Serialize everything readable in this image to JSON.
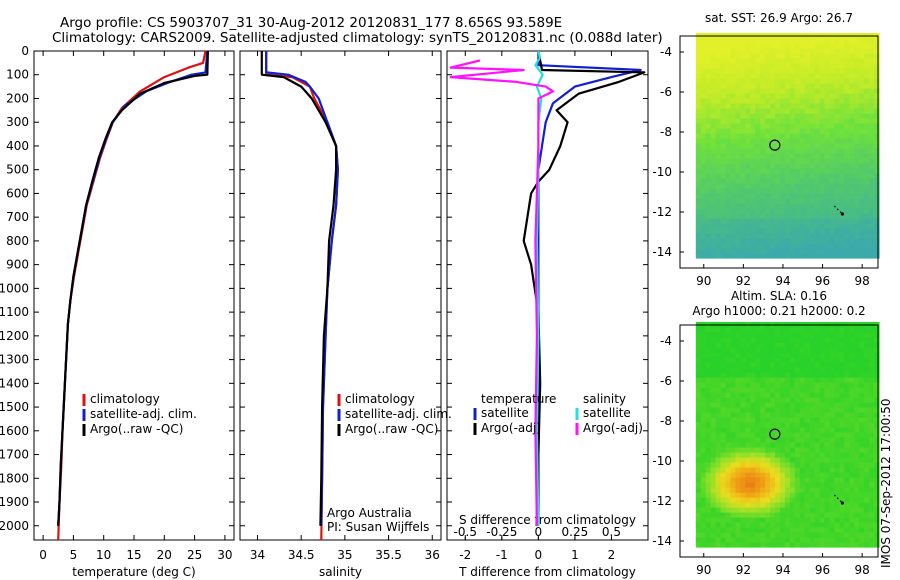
{
  "titles": {
    "line1": "Argo profile: CS 5903707_31 30-Aug-2012 20120831_177 8.656S 93.589E",
    "line2": "Climatology: CARS2009. Satellite-adjusted climatology: synTS_20120831.nc (0.088d later)"
  },
  "side_stamp": "IMOS 07-Sep-2012 17:00:50",
  "colors": {
    "climatology": "#e01010",
    "satellite": "#1020d0",
    "argo": "#000000",
    "satellite_salinity": "#20e0e0",
    "argo_salinity": "#ff10ff"
  },
  "chart_data": [
    {
      "type": "line",
      "panel": "temperature",
      "xlabel": "temperature (deg C)",
      "ylabel": "",
      "xlim": [
        -1.5,
        31.5
      ],
      "ylim": [
        2060,
        0
      ],
      "xticks": [
        0,
        5,
        10,
        15,
        20,
        25,
        30
      ],
      "yticks": [
        0,
        100,
        200,
        300,
        400,
        500,
        600,
        700,
        800,
        900,
        1000,
        1100,
        1200,
        1300,
        1400,
        1500,
        1600,
        1700,
        1800,
        1900,
        2000
      ],
      "legend": {
        "placement": "lower-center",
        "entries": [
          "climatology",
          "satellite-adj. clim.",
          "Argo(..raw -QC)"
        ]
      },
      "series": [
        {
          "name": "climatology",
          "color_key": "climatology",
          "points": [
            [
              26.8,
              0
            ],
            [
              26.4,
              50
            ],
            [
              24,
              70
            ],
            [
              20,
              110
            ],
            [
              16,
              170
            ],
            [
              13,
              240
            ],
            [
              11.5,
              300
            ],
            [
              10.5,
              370
            ],
            [
              9.4,
              450
            ],
            [
              8.3,
              550
            ],
            [
              7.2,
              650
            ],
            [
              6.5,
              750
            ],
            [
              5.8,
              850
            ],
            [
              5.1,
              950
            ],
            [
              4.5,
              1050
            ],
            [
              4.1,
              1150
            ],
            [
              3.8,
              1300
            ],
            [
              3.5,
              1450
            ],
            [
              3.2,
              1600
            ],
            [
              3,
              1750
            ],
            [
              2.7,
              1900
            ],
            [
              2.5,
              2060
            ]
          ]
        },
        {
          "name": "satellite-adj. clim.",
          "color_key": "satellite",
          "points": [
            [
              27.1,
              0
            ],
            [
              26.8,
              90
            ],
            [
              24.5,
              100
            ],
            [
              21,
              130
            ],
            [
              17,
              170
            ],
            [
              13.5,
              230
            ],
            [
              11.5,
              300
            ],
            [
              10.4,
              370
            ],
            [
              9.3,
              450
            ],
            [
              8.2,
              550
            ],
            [
              7.1,
              650
            ],
            [
              6.4,
              750
            ],
            [
              5.7,
              850
            ],
            [
              5,
              950
            ],
            [
              4.5,
              1050
            ],
            [
              4.1,
              1150
            ],
            [
              3.8,
              1300
            ],
            [
              3.5,
              1450
            ],
            [
              3.2,
              1600
            ],
            [
              2.9,
              1750
            ],
            [
              2.7,
              1900
            ],
            [
              2.5,
              2000
            ]
          ]
        },
        {
          "name": "Argo(..raw -QC)",
          "color_key": "argo",
          "points": [
            [
              27.2,
              0
            ],
            [
              27.1,
              100
            ],
            [
              25,
              105
            ],
            [
              20,
              135
            ],
            [
              16,
              180
            ],
            [
              13,
              250
            ],
            [
              11.4,
              300
            ],
            [
              10.3,
              370
            ],
            [
              9.2,
              450
            ],
            [
              8.1,
              550
            ],
            [
              7.1,
              650
            ],
            [
              6.4,
              750
            ],
            [
              5.7,
              850
            ],
            [
              5,
              950
            ],
            [
              4.5,
              1050
            ],
            [
              4.1,
              1150
            ],
            [
              3.8,
              1300
            ],
            [
              3.5,
              1450
            ],
            [
              3.2,
              1600
            ],
            [
              2.9,
              1750
            ],
            [
              2.7,
              1900
            ],
            [
              2.5,
              2000
            ]
          ]
        }
      ]
    },
    {
      "type": "line",
      "panel": "salinity",
      "xlabel": "salinity",
      "ylabel": "",
      "xlim": [
        33.8,
        36.1
      ],
      "ylim": [
        2060,
        0
      ],
      "xticks": [
        34,
        34.5,
        35,
        35.5,
        36
      ],
      "legend": {
        "placement": "lower-right",
        "entries": [
          "climatology",
          "satellite-adj. clim.",
          "Argo(..raw -QC)"
        ]
      },
      "annotations": [
        "Argo Australia",
        "PI: Susan Wijffels"
      ],
      "series": [
        {
          "name": "climatology",
          "color_key": "climatology",
          "points": [
            [
              34.1,
              0
            ],
            [
              34.1,
              100
            ],
            [
              34.4,
              110
            ],
            [
              34.6,
              150
            ],
            [
              34.65,
              200
            ],
            [
              34.8,
              300
            ],
            [
              34.9,
              400
            ],
            [
              34.92,
              500
            ],
            [
              34.9,
              650
            ],
            [
              34.85,
              800
            ],
            [
              34.8,
              1000
            ],
            [
              34.78,
              1200
            ],
            [
              34.75,
              1500
            ],
            [
              34.74,
              1800
            ],
            [
              34.73,
              2060
            ]
          ]
        },
        {
          "name": "satellite-adj. clim.",
          "color_key": "satellite",
          "points": [
            [
              34.1,
              0
            ],
            [
              34.1,
              90
            ],
            [
              34.35,
              100
            ],
            [
              34.55,
              130
            ],
            [
              34.6,
              150
            ],
            [
              34.7,
              200
            ],
            [
              34.8,
              300
            ],
            [
              34.9,
              400
            ],
            [
              34.92,
              500
            ],
            [
              34.9,
              650
            ],
            [
              34.85,
              800
            ],
            [
              34.8,
              1000
            ],
            [
              34.78,
              1200
            ],
            [
              34.75,
              1500
            ],
            [
              34.74,
              1800
            ],
            [
              34.73,
              2000
            ]
          ]
        },
        {
          "name": "Argo(..raw -QC)",
          "color_key": "argo",
          "points": [
            [
              34.05,
              0
            ],
            [
              34.05,
              100
            ],
            [
              34.3,
              110
            ],
            [
              34.5,
              150
            ],
            [
              34.55,
              170
            ],
            [
              34.62,
              200
            ],
            [
              34.78,
              300
            ],
            [
              34.9,
              400
            ],
            [
              34.9,
              500
            ],
            [
              34.87,
              650
            ],
            [
              34.82,
              800
            ],
            [
              34.8,
              1000
            ],
            [
              34.76,
              1200
            ],
            [
              34.74,
              1500
            ],
            [
              34.73,
              1800
            ],
            [
              34.72,
              2000
            ]
          ]
        }
      ]
    },
    {
      "type": "line",
      "panel": "difference",
      "xlabel": "T difference from climatology",
      "x2label": "S difference from climatology",
      "xlim": [
        -2.5,
        3
      ],
      "x2lim": [
        -0.625,
        0.75
      ],
      "ylim": [
        2060,
        0
      ],
      "xticks": [
        -2,
        -1,
        0,
        1,
        2
      ],
      "x2ticks": [
        -0.5,
        -0.25,
        0,
        0.25,
        0.5
      ],
      "x2ticklabels": [
        "-0.5",
        "-0.25",
        "0",
        "0.25",
        "0.5"
      ],
      "legend": {
        "placement": "lower-center",
        "headers": [
          "temperature",
          "salinity"
        ],
        "entries": [
          "satellite",
          "Argo(-adj)",
          "satellite",
          "Argo(-adj)"
        ]
      },
      "series": [
        {
          "name": "satellite",
          "group": "temperature",
          "color_key": "satellite",
          "points": [
            [
              0,
              0
            ],
            [
              0,
              60
            ],
            [
              2.8,
              80
            ],
            [
              2,
              110
            ],
            [
              1,
              150
            ],
            [
              0.4,
              220
            ],
            [
              0.2,
              300
            ],
            [
              0.1,
              400
            ],
            [
              0,
              500
            ],
            [
              0,
              800
            ],
            [
              0,
              1000
            ],
            [
              0,
              1400
            ],
            [
              0,
              1700
            ],
            [
              -0.05,
              2000
            ]
          ]
        },
        {
          "name": "Argo(-adj)",
          "group": "temperature",
          "color_key": "argo",
          "points": [
            [
              0,
              0
            ],
            [
              0.1,
              80
            ],
            [
              2.9,
              90
            ],
            [
              2.2,
              130
            ],
            [
              1.1,
              180
            ],
            [
              0.5,
              250
            ],
            [
              0.8,
              300
            ],
            [
              0.6,
              400
            ],
            [
              0.3,
              500
            ],
            [
              0,
              550
            ],
            [
              -0.2,
              600
            ],
            [
              -0.3,
              700
            ],
            [
              -0.4,
              800
            ],
            [
              -0.2,
              900
            ],
            [
              -0.1,
              1000
            ],
            [
              0,
              1100
            ],
            [
              0.05,
              1400
            ],
            [
              0,
              1700
            ],
            [
              0,
              2000
            ]
          ]
        },
        {
          "name": "satellite",
          "group": "salinity",
          "color_key": "satellite_salinity",
          "points": [
            [
              0,
              0
            ],
            [
              0.01,
              30
            ],
            [
              -0.02,
              60
            ],
            [
              0.03,
              100
            ],
            [
              -0.01,
              150
            ],
            [
              0.02,
              200
            ],
            [
              0,
              300
            ],
            [
              0,
              500
            ],
            [
              -0.01,
              800
            ],
            [
              0,
              1200
            ],
            [
              -0.01,
              1600
            ],
            [
              0,
              2000
            ]
          ]
        },
        {
          "name": "Argo(-adj)",
          "group": "salinity",
          "color_key": "argo_salinity",
          "points": [
            [
              -0.4,
              40
            ],
            [
              -0.6,
              70
            ],
            [
              -0.1,
              80
            ],
            [
              -0.6,
              110
            ],
            [
              -0.15,
              130
            ],
            [
              0.05,
              150
            ],
            [
              0.1,
              170
            ],
            [
              0,
              200
            ],
            [
              0,
              400
            ],
            [
              -0.02,
              800
            ],
            [
              -0.01,
              1200
            ],
            [
              -0.02,
              1600
            ],
            [
              -0.01,
              2000
            ]
          ]
        }
      ]
    },
    {
      "type": "heatmap",
      "panel": "sst-map",
      "title": "sat. SST: 26.9  Argo: 26.7",
      "xlim": [
        88.8,
        98.8
      ],
      "ylim": [
        -14.8,
        -3.2
      ],
      "xticks": [
        90,
        92,
        94,
        96,
        98
      ],
      "yticks": [
        -4,
        -6,
        -8,
        -10,
        -12,
        -14
      ],
      "data_lon": [
        89.6,
        98.8
      ],
      "data_lat": [
        -14.3,
        -3.2
      ],
      "marker": {
        "lon": 93.589,
        "lat": -8.656
      },
      "track": [
        [
          96.6,
          -11.7
        ],
        [
          96.8,
          -11.9
        ],
        [
          97.0,
          -12.1
        ]
      ]
    },
    {
      "type": "heatmap",
      "panel": "sla-map",
      "title": "Altim. SLA: 0.16",
      "subtitle": "Argo h1000: 0.21  h2000: 0.2",
      "xlim": [
        88.8,
        98.8
      ],
      "ylim": [
        -14.8,
        -3.2
      ],
      "xticks": [
        90,
        92,
        94,
        96,
        98
      ],
      "yticks": [
        -4,
        -6,
        -8,
        -10,
        -12,
        -14
      ],
      "data_lon": [
        89.6,
        98.8
      ],
      "data_lat": [
        -14.3,
        -3.2
      ],
      "marker": {
        "lon": 93.589,
        "lat": -8.656
      },
      "track": [
        [
          96.6,
          -11.7
        ],
        [
          96.8,
          -11.9
        ],
        [
          97.0,
          -12.1
        ]
      ]
    }
  ]
}
